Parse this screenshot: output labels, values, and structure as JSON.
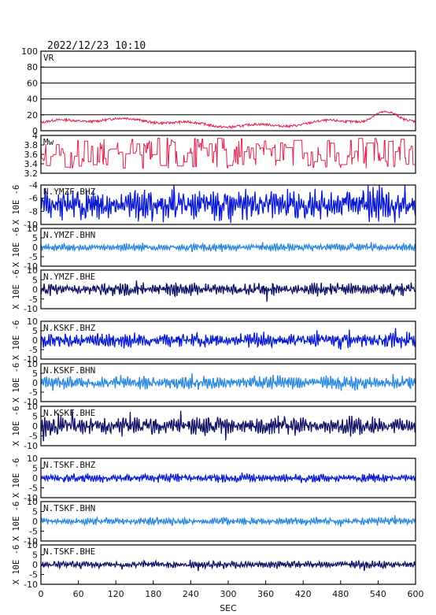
{
  "header": {
    "timestamp": "2022/12/23 10:10"
  },
  "chart_data": {
    "type": "line",
    "xlabel": "SEC",
    "xlim": [
      0,
      600
    ],
    "xticks": [
      0,
      60,
      120,
      180,
      240,
      300,
      360,
      420,
      480,
      540,
      600
    ],
    "panels": [
      {
        "label": "VR",
        "color": "#e0204a",
        "ylim": [
          0,
          100
        ],
        "yticks": [
          0,
          20,
          40,
          60,
          80,
          100
        ],
        "grid": true,
        "ylabel": "",
        "kind": "vr"
      },
      {
        "label": "Mw",
        "color": "#e0204a",
        "ylim": [
          3.2,
          4.0
        ],
        "yticks": [
          3.2,
          3.4,
          3.6,
          3.8,
          4.0
        ],
        "grid": false,
        "ylabel": "",
        "kind": "mw"
      },
      {
        "label": "N.YMZF.BHZ",
        "color": "#0a1ad0",
        "ylim": [
          -10,
          -4
        ],
        "yticks": [
          -10,
          -8,
          -6,
          -4
        ],
        "grid": false,
        "ylabel": "X 10E -6",
        "kind": "wave",
        "amp": 0.38,
        "seed": 3
      },
      {
        "label": "N.YMZF.BHN",
        "color": "#2a88dd",
        "ylim": [
          -10,
          10
        ],
        "yticks": [
          -10,
          -5,
          0,
          5,
          10
        ],
        "grid": false,
        "ylabel": "X 10E -6",
        "kind": "wave",
        "amp": 0.09,
        "seed": 7
      },
      {
        "label": "N.YMZF.BHE",
        "color": "#121266",
        "ylim": [
          -10,
          10
        ],
        "yticks": [
          -10,
          -5,
          0,
          5,
          10
        ],
        "grid": false,
        "ylabel": "X 10E -6",
        "kind": "wave",
        "amp": 0.15,
        "seed": 11
      },
      {
        "label": "N.KSKF.BHZ",
        "color": "#0a1ad0",
        "ylim": [
          -10,
          10
        ],
        "yticks": [
          -10,
          -5,
          0,
          5,
          10
        ],
        "grid": false,
        "ylabel": "X 10E -6",
        "kind": "wave",
        "amp": 0.18,
        "seed": 17
      },
      {
        "label": "N.KSKF.BHN",
        "color": "#2a88dd",
        "ylim": [
          -10,
          10
        ],
        "yticks": [
          -10,
          -5,
          0,
          5,
          10
        ],
        "grid": false,
        "ylabel": "X 10E -6",
        "kind": "wave",
        "amp": 0.17,
        "seed": 23
      },
      {
        "label": "N.KSKF.BHE",
        "color": "#121266",
        "ylim": [
          -10,
          10
        ],
        "yticks": [
          -10,
          -5,
          0,
          5,
          10
        ],
        "grid": false,
        "ylabel": "X 10E -6",
        "kind": "wave",
        "amp": 0.22,
        "seed": 29
      },
      {
        "label": "N.TSKF.BHZ",
        "color": "#0a1ad0",
        "ylim": [
          -10,
          10
        ],
        "yticks": [
          -10,
          -5,
          0,
          5,
          10
        ],
        "grid": false,
        "ylabel": "X 10E -6",
        "kind": "wave",
        "amp": 0.1,
        "seed": 31
      },
      {
        "label": "N.TSKF.BHN",
        "color": "#2a88dd",
        "ylim": [
          -10,
          10
        ],
        "yticks": [
          -10,
          -5,
          0,
          5,
          10
        ],
        "grid": false,
        "ylabel": "X 10E -6",
        "kind": "wave",
        "amp": 0.09,
        "seed": 37
      },
      {
        "label": "N.TSKF.BHE",
        "color": "#121266",
        "ylim": [
          -10,
          10
        ],
        "yticks": [
          -10,
          -5,
          0,
          5,
          10
        ],
        "grid": false,
        "ylabel": "X 10E -6",
        "kind": "wave",
        "amp": 0.09,
        "seed": 41
      }
    ]
  }
}
